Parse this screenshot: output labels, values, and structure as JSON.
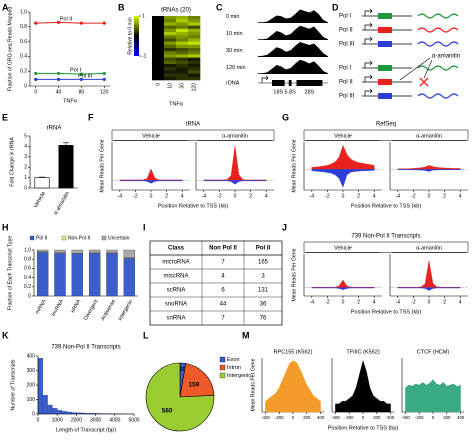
{
  "chart_data": [
    {
      "type": "line",
      "label": "A",
      "ylabel": "Fraction of GRO-seq Reads Mapped",
      "xlabel": "TNFα",
      "x": [
        0,
        40,
        80,
        120
      ],
      "xlim": [
        -10,
        130
      ],
      "xticks": [
        0,
        40,
        80,
        120
      ],
      "ylim": [
        0,
        1
      ],
      "yticks": [
        0,
        0.2,
        0.4,
        0.6,
        0.8,
        {
          "value": 1,
          "label": "1.0"
        }
      ],
      "series": [
        {
          "name": "Pol II",
          "color": "#e8231e",
          "values": [
            0.85,
            0.86,
            0.85,
            0.85
          ]
        },
        {
          "name": "Pol I",
          "color": "#1a9a3a",
          "values": [
            0.17,
            0.17,
            0.16,
            0.17
          ]
        },
        {
          "name": "Pol III",
          "color": "#2b3fd8",
          "values": [
            0.09,
            0.09,
            0.09,
            0.09
          ]
        }
      ]
    },
    {
      "type": "heatmap",
      "label": "B",
      "title": "tRNAs (20)",
      "xlabel": "TNFα",
      "columns": [
        0,
        10,
        30,
        120
      ],
      "colorbar_label": "Relative to 0 min",
      "clim": [
        -1,
        1
      ],
      "cticks": [
        1,
        -1
      ],
      "values": [
        [
          0,
          0.6,
          0.7,
          0.5
        ],
        [
          0,
          0.5,
          0.8,
          0.6
        ],
        [
          0,
          0.7,
          0.6,
          0.8
        ],
        [
          0,
          0.4,
          0.5,
          0.3
        ],
        [
          0,
          0.6,
          0.9,
          0.7
        ],
        [
          0,
          0.8,
          0.7,
          0.6
        ],
        [
          0,
          0.5,
          0.6,
          0.5
        ],
        [
          0,
          0.3,
          0.5,
          0.7
        ],
        [
          0,
          0.6,
          0.8,
          0.9
        ],
        [
          0,
          0.4,
          0.6,
          0.6
        ],
        [
          0,
          0.2,
          0.3,
          0.4
        ],
        [
          0,
          0.5,
          0.4,
          0.5
        ],
        [
          0,
          0.6,
          0.7,
          0.8
        ],
        [
          0,
          0.3,
          0.2,
          0.1
        ],
        [
          0,
          0.4,
          0.3,
          0.2
        ],
        [
          0,
          0.1,
          0.2,
          0.1
        ],
        [
          0,
          0.2,
          0.1,
          0.2
        ],
        [
          0,
          0.1,
          0.1,
          0.3
        ],
        [
          0,
          0.2,
          0.2,
          0.1
        ],
        [
          0,
          0.1,
          0.2,
          0.2
        ]
      ]
    },
    {
      "type": "tracks",
      "label": "C",
      "color": "#000000",
      "ylim": [
        0,
        1
      ],
      "track_label": "rDNA",
      "features": [
        "18S",
        "5.8S",
        "28S"
      ],
      "series": [
        {
          "name": "0 min",
          "values": [
            0.05,
            0.05,
            0.1,
            0.3,
            0.5,
            0.45,
            0.3,
            0.35,
            0.6,
            0.9,
            0.8,
            0.7,
            0.85,
            0.6,
            0.2,
            0.05
          ]
        },
        {
          "name": "10 min",
          "values": [
            0.05,
            0.05,
            0.1,
            0.35,
            0.6,
            0.5,
            0.3,
            0.4,
            0.7,
            0.95,
            0.85,
            0.75,
            0.9,
            0.55,
            0.2,
            0.05
          ]
        },
        {
          "name": "30 min",
          "values": [
            0.05,
            0.08,
            0.15,
            0.4,
            0.65,
            0.55,
            0.35,
            0.45,
            0.75,
            1.0,
            0.9,
            0.8,
            0.9,
            0.6,
            0.25,
            0.05
          ]
        },
        {
          "name": "120 min",
          "values": [
            0.05,
            0.05,
            0.12,
            0.35,
            0.6,
            0.5,
            0.3,
            0.4,
            0.7,
            0.95,
            0.85,
            0.7,
            0.85,
            0.55,
            0.2,
            0.05
          ]
        }
      ]
    },
    {
      "type": "bar",
      "label": "E",
      "title": "rRNA",
      "ylabel": "Fold Change in rRNA",
      "categories": [
        "Vehicle",
        "α-amanitin"
      ],
      "values": [
        1,
        4.1
      ],
      "errors": [
        0.05,
        0.25
      ],
      "colors": [
        "#ffffff",
        "#000000"
      ],
      "ylim": [
        0,
        5
      ],
      "yticks": [
        0,
        1,
        2,
        3,
        4,
        5
      ]
    },
    {
      "type": "profile",
      "label": "F",
      "title": "tRNA",
      "ylabel": "Mean Reads Per Gene",
      "xlabel": "Position Relative to TSS (kb)",
      "x": [
        -4,
        -3.5,
        -3,
        -2.5,
        -2,
        -1.5,
        -1,
        -0.5,
        0,
        0.5,
        1,
        1.5,
        2,
        2.5,
        3,
        3.5,
        4
      ],
      "xlim": [
        -5,
        5
      ],
      "xticks": [
        -4,
        -2,
        0,
        2,
        4
      ],
      "ylim": [
        -1,
        4
      ],
      "facets": [
        {
          "title": "Vehicle",
          "series": [
            {
              "color": "#e8231e",
              "values": [
                0.05,
                0.05,
                0.05,
                0.05,
                0.05,
                0.05,
                0.05,
                0.2,
                1.2,
                0.25,
                0.05,
                0.05,
                0.05,
                0.05,
                0.05,
                0.05,
                0.05
              ]
            },
            {
              "color": "#2b3fd8",
              "values": [
                -0.05,
                -0.05,
                -0.05,
                -0.05,
                -0.05,
                -0.05,
                -0.05,
                -0.1,
                -0.3,
                -0.1,
                -0.05,
                -0.05,
                -0.05,
                -0.05,
                -0.05,
                -0.05,
                -0.05
              ]
            }
          ]
        },
        {
          "title": "α-amanitin",
          "series": [
            {
              "color": "#e8231e",
              "values": [
                0.05,
                0.05,
                0.05,
                0.05,
                0.05,
                0.05,
                0.1,
                0.5,
                3.6,
                0.6,
                0.1,
                0.05,
                0.05,
                0.05,
                0.05,
                0.05,
                0.05
              ]
            },
            {
              "color": "#2b3fd8",
              "values": [
                -0.05,
                -0.05,
                -0.05,
                -0.05,
                -0.05,
                -0.05,
                -0.05,
                -0.12,
                -0.4,
                -0.12,
                -0.05,
                -0.05,
                -0.05,
                -0.05,
                -0.05,
                -0.05,
                -0.05
              ]
            }
          ]
        }
      ]
    },
    {
      "type": "profile",
      "label": "G",
      "title": "RefSeq",
      "ylabel": "Mean Reads Per Gene",
      "xlabel": "Position Relative to TSS (kb)",
      "x": [
        -4,
        -3.5,
        -3,
        -2.5,
        -2,
        -1.5,
        -1,
        -0.5,
        0,
        0.5,
        1,
        1.5,
        2,
        2.5,
        3,
        3.5,
        4
      ],
      "xlim": [
        -5,
        5
      ],
      "xticks": [
        -4,
        -2,
        0,
        2,
        4
      ],
      "ylim": [
        -3,
        4
      ],
      "facets": [
        {
          "title": "Vehicle",
          "series": [
            {
              "color": "#e8231e",
              "values": [
                0.3,
                0.35,
                0.4,
                0.5,
                0.6,
                0.8,
                1.1,
                1.8,
                3.5,
                2.2,
                1.5,
                1.2,
                1.0,
                0.9,
                0.8,
                0.7,
                0.6
              ]
            },
            {
              "color": "#2b3fd8",
              "values": [
                -0.2,
                -0.25,
                -0.3,
                -0.35,
                -0.45,
                -0.55,
                -0.8,
                -1.3,
                -2.6,
                -0.8,
                -0.4,
                -0.3,
                -0.25,
                -0.2,
                -0.2,
                -0.15,
                -0.15
              ]
            }
          ]
        },
        {
          "title": "α-amanitin",
          "series": [
            {
              "color": "#e8231e",
              "values": [
                0.1,
                0.1,
                0.1,
                0.12,
                0.15,
                0.2,
                0.25,
                0.35,
                0.6,
                0.4,
                0.3,
                0.25,
                0.2,
                0.2,
                0.15,
                0.15,
                0.15
              ]
            },
            {
              "color": "#2b3fd8",
              "values": [
                -0.05,
                -0.05,
                -0.05,
                -0.06,
                -0.07,
                -0.08,
                -0.1,
                -0.15,
                -0.3,
                -0.1,
                -0.08,
                -0.07,
                -0.06,
                -0.05,
                -0.05,
                -0.05,
                -0.05
              ]
            }
          ]
        }
      ]
    },
    {
      "type": "stacked_bar",
      "label": "H",
      "ylabel": "Fraction of Each Transcript Type",
      "categories": [
        "mRNA",
        "lncRNA",
        "eRNA",
        "Divergent",
        "Antisense",
        "Intergenic"
      ],
      "ylim": [
        0,
        1
      ],
      "yticks": [
        0,
        0.2,
        0.4,
        0.6,
        0.8,
        {
          "value": 1,
          "label": "1.0"
        }
      ],
      "series": [
        {
          "name": "Pol II",
          "color": "#3a5fcd",
          "values": [
            0.95,
            0.93,
            0.92,
            0.93,
            0.93,
            0.82
          ]
        },
        {
          "name": "Non-Pol II",
          "color": "#f0e68c",
          "values": [
            0.01,
            0.01,
            0.01,
            0.01,
            0.01,
            0.01
          ]
        },
        {
          "name": "Uncertain",
          "color": "#a8a8a8",
          "values": [
            0.04,
            0.06,
            0.07,
            0.06,
            0.06,
            0.17
          ]
        }
      ]
    },
    {
      "type": "profile",
      "label": "J",
      "title": "739 Non-Pol II Transcripts",
      "ylabel": "Mean Reads Per Gene",
      "xlabel": "Position Relative to TSS (kb)",
      "x": [
        -4,
        -3.5,
        -3,
        -2.5,
        -2,
        -1.5,
        -1,
        -0.5,
        0,
        0.5,
        1,
        1.5,
        2,
        2.5,
        3,
        3.5,
        4
      ],
      "xlim": [
        -5,
        5
      ],
      "xticks": [
        -4,
        -2,
        0,
        2,
        4
      ],
      "ylim": [
        -1,
        4
      ],
      "facets": [
        {
          "title": "Vehicle",
          "series": [
            {
              "color": "#e8231e",
              "values": [
                0.05,
                0.05,
                0.05,
                0.05,
                0.05,
                0.05,
                0.05,
                0.2,
                0.9,
                0.2,
                0.05,
                0.05,
                0.05,
                0.05,
                0.05,
                0.05,
                0.05
              ]
            },
            {
              "color": "#2b3fd8",
              "values": [
                -0.05,
                -0.05,
                -0.05,
                -0.05,
                -0.05,
                -0.05,
                -0.05,
                -0.1,
                -0.25,
                -0.1,
                -0.05,
                -0.05,
                -0.05,
                -0.05,
                -0.05,
                -0.05,
                -0.05
              ]
            }
          ]
        },
        {
          "title": "α-amanitin",
          "series": [
            {
              "color": "#e8231e",
              "values": [
                0.05,
                0.05,
                0.05,
                0.05,
                0.05,
                0.05,
                0.1,
                0.45,
                3.2,
                0.5,
                0.1,
                0.05,
                0.05,
                0.05,
                0.05,
                0.05,
                0.05
              ]
            },
            {
              "color": "#2b3fd8",
              "values": [
                -0.05,
                -0.05,
                -0.05,
                -0.05,
                -0.05,
                -0.05,
                -0.05,
                -0.1,
                -0.35,
                -0.1,
                -0.05,
                -0.05,
                -0.05,
                -0.05,
                -0.05,
                -0.05,
                -0.05
              ]
            }
          ]
        }
      ]
    },
    {
      "type": "histogram",
      "label": "K",
      "title": "739 Non-Pol II Transcripts",
      "ylabel": "Number of Transcripts",
      "xlabel": "Length of Transcript (bp)",
      "bins": [
        0,
        250,
        500,
        750,
        1000,
        1250,
        1500,
        1750,
        2000,
        2250,
        2500,
        2750,
        3000,
        3250,
        3500,
        3750,
        4000,
        4250,
        4500,
        4750,
        5000
      ],
      "counts": [
        385,
        130,
        62,
        40,
        25,
        18,
        14,
        10,
        8,
        7,
        5,
        5,
        4,
        3,
        3,
        2,
        2,
        2,
        1,
        1
      ],
      "color": "#3a5fcd",
      "xlim": [
        0,
        5000
      ],
      "xticks": [
        0,
        1000,
        2000,
        3000,
        4000,
        5000
      ],
      "ylim": [
        0,
        400
      ],
      "yticks": [
        0,
        100,
        200,
        300,
        400
      ]
    },
    {
      "type": "pie",
      "label": "L",
      "categories": [
        "Exon",
        "Intron",
        "Intergenic"
      ],
      "values": [
        20,
        159,
        560
      ],
      "colors": [
        "#3a5fcd",
        "#f05a28",
        "#9acd32"
      ]
    },
    {
      "type": "profile",
      "label": "M",
      "ylabel": "Mean Reads Per Gene",
      "xlabel": "Position Relative to TSS (bp)",
      "x": [
        -400,
        -350,
        -300,
        -250,
        -200,
        -150,
        -100,
        -50,
        0,
        50,
        100,
        150,
        200,
        250,
        300,
        350,
        400
      ],
      "xlim": [
        -450,
        450
      ],
      "xticks": [
        -400,
        -200,
        0,
        200,
        400
      ],
      "ylim": [
        0,
        1
      ],
      "facets": [
        {
          "title": "RPC155 (K562)",
          "series": [
            {
              "color": "#f39c2a",
              "values": [
                0.2,
                0.25,
                0.3,
                0.35,
                0.45,
                0.6,
                0.75,
                0.9,
                0.95,
                0.92,
                0.8,
                0.65,
                0.5,
                0.4,
                0.3,
                0.25,
                0.2
              ]
            }
          ]
        },
        {
          "title": "TFIIIC (K562)",
          "series": [
            {
              "color": "#000000",
              "values": [
                0.15,
                0.15,
                0.2,
                0.2,
                0.25,
                0.3,
                0.45,
                0.7,
                0.95,
                0.75,
                0.45,
                0.3,
                0.25,
                0.2,
                0.2,
                0.15,
                0.15
              ]
            }
          ]
        },
        {
          "title": "CTCF (HCM)",
          "series": [
            {
              "color": "#3aaa80",
              "values": [
                0.45,
                0.5,
                0.48,
                0.52,
                0.5,
                0.55,
                0.5,
                0.53,
                0.6,
                0.52,
                0.5,
                0.55,
                0.48,
                0.5,
                0.52,
                0.47,
                0.5
              ]
            }
          ]
        }
      ]
    }
  ],
  "diagram_D": {
    "label": "D",
    "top": [
      "Pol I",
      "Pol II",
      "Pol III"
    ],
    "bottom": [
      "Pol I",
      "Pol II",
      "Pol III"
    ],
    "drug": "α-amanitin"
  },
  "table_I": {
    "label": "I",
    "columns": [
      "Class",
      "Non Pol II",
      "Pol II"
    ],
    "rows": [
      [
        "microRNA",
        "7",
        "165"
      ],
      [
        "miscRNA",
        "4",
        "3"
      ],
      [
        "scRNA",
        "6",
        "131"
      ],
      [
        "snoRNA",
        "44",
        "36"
      ],
      [
        "snRNA",
        "7",
        "76"
      ]
    ]
  }
}
